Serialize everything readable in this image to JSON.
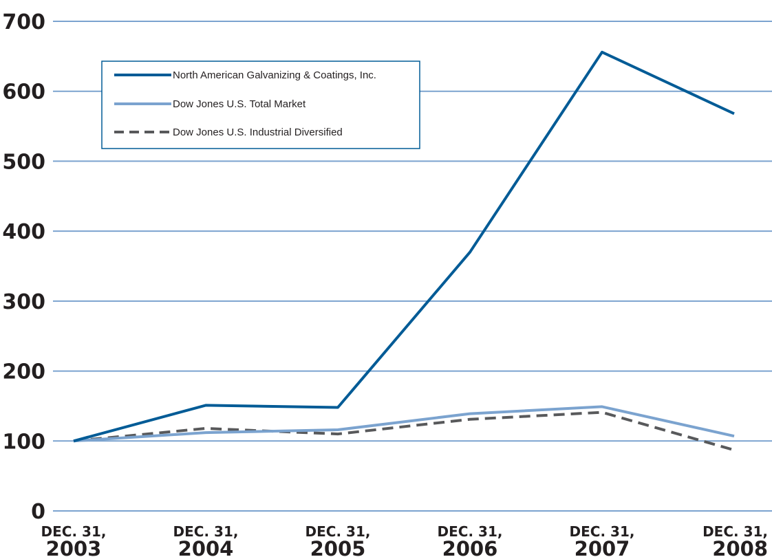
{
  "chart_data": {
    "type": "line",
    "title": "",
    "xlabel": "",
    "ylabel": "",
    "categories": [
      {
        "line1": "DEC. 31,",
        "line2": "2003"
      },
      {
        "line1": "DEC. 31,",
        "line2": "2004"
      },
      {
        "line1": "DEC. 31,",
        "line2": "2005"
      },
      {
        "line1": "DEC. 31,",
        "line2": "2006"
      },
      {
        "line1": "DEC. 31,",
        "line2": "2007"
      },
      {
        "line1": "DEC. 31,",
        "line2": "2008"
      }
    ],
    "y_ticks": [
      "0",
      "100",
      "200",
      "300",
      "400",
      "500",
      "600",
      "700"
    ],
    "ylim": [
      0,
      700
    ],
    "grid": true,
    "legend_position": "top-left",
    "series": [
      {
        "name": "North American Galvanizing & Coatings, Inc.",
        "values": [
          100,
          151,
          148,
          370,
          656,
          568
        ],
        "color": "#005b96",
        "style": "solid"
      },
      {
        "name": "Dow Jones U.S. Total Market",
        "values": [
          100,
          112,
          116,
          139,
          149,
          107
        ],
        "color": "#7ba3cf",
        "style": "solid"
      },
      {
        "name": "Dow Jones U.S. Industrial Diversified",
        "values": [
          100,
          118,
          110,
          131,
          141,
          87
        ],
        "color": "#58595b",
        "style": "dashed"
      }
    ],
    "gridline_color": "#7ba3cf",
    "legend_border_color": "#005b96"
  }
}
